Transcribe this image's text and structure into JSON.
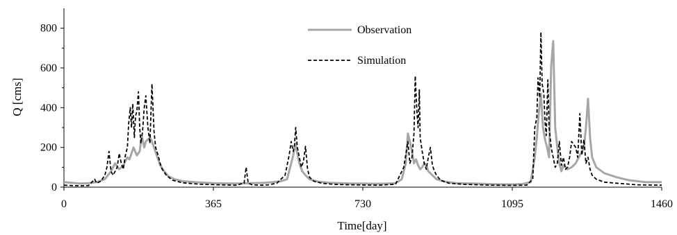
{
  "chart_data": {
    "type": "line",
    "xlabel": "Time[day]",
    "ylabel": "Q [cms]",
    "xlim": [
      0,
      1460
    ],
    "ylim": [
      0,
      900
    ],
    "x_ticks": [
      0,
      365,
      730,
      1095,
      1460
    ],
    "y_ticks": [
      0,
      200,
      400,
      600,
      800
    ],
    "legend_position": "top-center",
    "grid": false,
    "series": [
      {
        "name": "Observation",
        "color": "#a6a6a6",
        "style": "solid",
        "x": [
          0,
          20,
          40,
          60,
          80,
          100,
          115,
          125,
          135,
          145,
          155,
          160,
          165,
          170,
          178,
          185,
          190,
          196,
          200,
          205,
          210,
          215,
          220,
          225,
          230,
          235,
          245,
          255,
          270,
          290,
          320,
          365,
          420,
          460,
          490,
          510,
          530,
          545,
          555,
          560,
          565,
          570,
          575,
          582,
          590,
          600,
          620,
          650,
          700,
          730,
          760,
          790,
          810,
          825,
          835,
          840,
          845,
          850,
          855,
          860,
          865,
          870,
          875,
          880,
          885,
          890,
          900,
          910,
          930,
          960,
          1000,
          1050,
          1095,
          1120,
          1140,
          1150,
          1155,
          1160,
          1165,
          1170,
          1175,
          1180,
          1185,
          1190,
          1195,
          1200,
          1205,
          1210,
          1215,
          1220,
          1230,
          1240,
          1250,
          1260,
          1270,
          1275,
          1280,
          1285,
          1290,
          1300,
          1320,
          1350,
          1380,
          1420,
          1460
        ],
        "y": [
          25,
          22,
          18,
          20,
          25,
          40,
          80,
          120,
          90,
          110,
          150,
          140,
          170,
          200,
          160,
          180,
          260,
          200,
          230,
          240,
          250,
          230,
          200,
          170,
          140,
          110,
          80,
          55,
          40,
          30,
          25,
          20,
          18,
          20,
          22,
          25,
          30,
          40,
          120,
          160,
          220,
          170,
          120,
          80,
          60,
          40,
          28,
          22,
          18,
          18,
          17,
          18,
          20,
          40,
          120,
          270,
          230,
          180,
          120,
          140,
          110,
          90,
          100,
          120,
          110,
          80,
          60,
          40,
          28,
          20,
          18,
          15,
          14,
          16,
          25,
          150,
          250,
          380,
          470,
          300,
          240,
          200,
          150,
          610,
          735,
          300,
          200,
          120,
          80,
          110,
          90,
          100,
          120,
          160,
          200,
          300,
          445,
          250,
          150,
          100,
          70,
          50,
          35,
          25,
          25
        ]
      },
      {
        "name": "Simulation",
        "color": "#000000",
        "style": "dashed",
        "x": [
          0,
          20,
          40,
          60,
          75,
          80,
          90,
          100,
          105,
          110,
          115,
          120,
          130,
          135,
          140,
          145,
          150,
          155,
          158,
          162,
          165,
          168,
          172,
          175,
          178,
          182,
          185,
          188,
          192,
          196,
          200,
          205,
          210,
          215,
          220,
          224,
          230,
          235,
          240,
          250,
          265,
          290,
          330,
          380,
          420,
          440,
          445,
          450,
          460,
          480,
          500,
          520,
          540,
          550,
          555,
          560,
          563,
          566,
          570,
          575,
          580,
          585,
          590,
          595,
          600,
          610,
          630,
          660,
          700,
          730,
          770,
          810,
          830,
          840,
          845,
          850,
          855,
          858,
          862,
          865,
          868,
          870,
          875,
          880,
          885,
          890,
          895,
          900,
          905,
          910,
          920,
          940,
          980,
          1040,
          1095,
          1130,
          1145,
          1150,
          1155,
          1158,
          1162,
          1165,
          1168,
          1172,
          1175,
          1178,
          1182,
          1185,
          1190,
          1195,
          1200,
          1205,
          1210,
          1215,
          1220,
          1225,
          1230,
          1235,
          1240,
          1250,
          1255,
          1260,
          1265,
          1270,
          1275,
          1280,
          1285,
          1290,
          1300,
          1320,
          1350,
          1400,
          1460
        ],
        "y": [
          10,
          8,
          7,
          8,
          40,
          20,
          30,
          60,
          100,
          180,
          80,
          60,
          100,
          170,
          120,
          90,
          160,
          200,
          320,
          400,
          300,
          420,
          250,
          360,
          380,
          480,
          300,
          220,
          280,
          400,
          460,
          300,
          220,
          520,
          280,
          200,
          160,
          120,
          90,
          60,
          35,
          22,
          15,
          12,
          10,
          20,
          100,
          20,
          12,
          10,
          12,
          20,
          60,
          160,
          230,
          180,
          210,
          300,
          200,
          150,
          100,
          130,
          205,
          90,
          50,
          30,
          20,
          14,
          12,
          11,
          10,
          15,
          100,
          230,
          120,
          150,
          270,
          560,
          380,
          300,
          490,
          250,
          180,
          120,
          90,
          150,
          200,
          110,
          80,
          60,
          35,
          20,
          14,
          10,
          9,
          10,
          40,
          300,
          350,
          550,
          450,
          780,
          520,
          470,
          330,
          260,
          540,
          300,
          200,
          150,
          100,
          120,
          230,
          110,
          150,
          90,
          100,
          150,
          230,
          200,
          150,
          370,
          160,
          240,
          120,
          150,
          90,
          60,
          40,
          25,
          20,
          12,
          10
        ]
      }
    ]
  }
}
